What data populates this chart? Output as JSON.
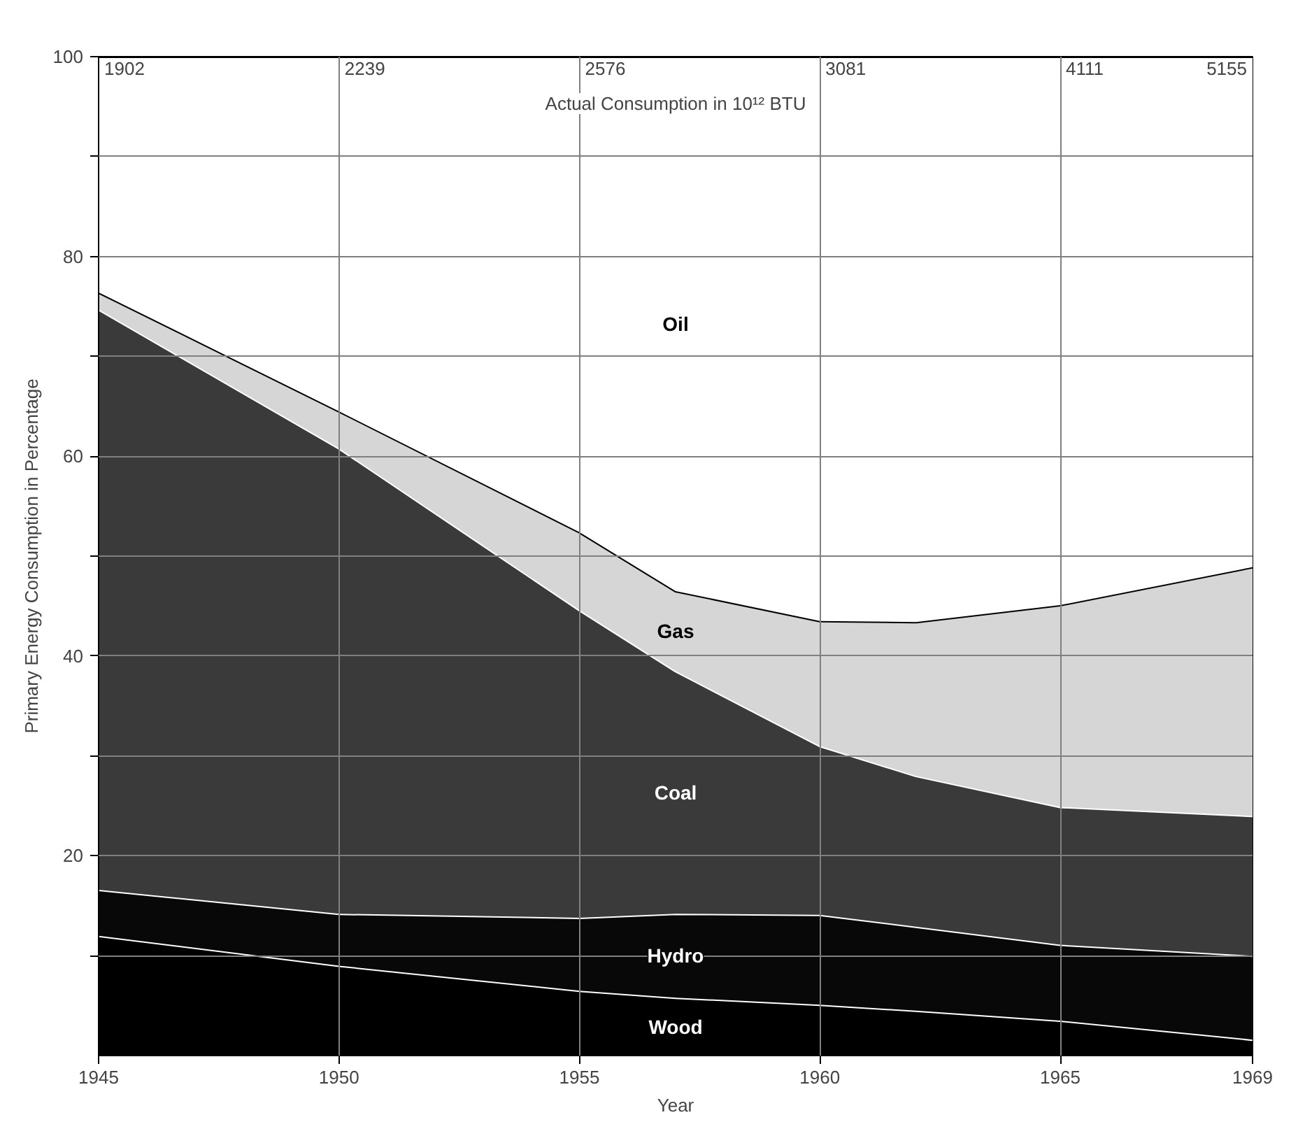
{
  "chart_data": {
    "type": "area",
    "stacked": true,
    "x": [
      1945,
      1950,
      1955,
      1957,
      1960,
      1962,
      1965,
      1969
    ],
    "xlim": [
      1945,
      1969
    ],
    "xticks": [
      1945,
      1950,
      1955,
      1960,
      1965,
      1969
    ],
    "annotations": [
      {
        "text": "1902",
        "x": 1945,
        "y": 100
      },
      {
        "text": "2239",
        "x": 1950,
        "y": 100
      },
      {
        "text": "2576",
        "x": 1955,
        "y": 100
      },
      {
        "text": "3081",
        "x": 1960,
        "y": 100
      },
      {
        "text": "4111",
        "x": 1965,
        "y": 100
      },
      {
        "text": "5155",
        "x": 1969,
        "y": 100
      },
      "Actual Consumption in 10¹² BTU"
    ],
    "xlabel": "Year",
    "ylabel": "Primary Energy Consumption in Percentage",
    "ylim": [
      0,
      100
    ],
    "yticks": [
      {
        "value": 10,
        "label": null
      },
      20,
      {
        "value": 30,
        "label": null
      },
      40,
      {
        "value": 50,
        "label": null
      },
      60,
      {
        "value": 70,
        "label": null
      },
      80,
      {
        "value": 90,
        "label": null
      },
      100
    ],
    "grid": true,
    "series": [
      {
        "name": "Wood",
        "color": "#000000",
        "values": [
          12,
          9,
          6.5,
          5.8,
          5.1,
          4.5,
          3.5,
          1.6
        ]
      },
      {
        "name": "Hydro",
        "color": "#080808",
        "values": [
          4.6,
          5.2,
          7.3,
          8.4,
          9.0,
          8.4,
          7.6,
          8.4
        ]
      },
      {
        "name": "Coal",
        "color": "#3a3a3a",
        "values": [
          58.1,
          46.6,
          30.8,
          24.3,
          16.9,
          15.1,
          13.8,
          14
        ]
      },
      {
        "name": "Gas",
        "color": "#d6d6d6",
        "values": [
          1.7,
          3.7,
          7.8,
          8.0,
          12.5,
          15.4,
          20.2,
          24.9
        ]
      },
      {
        "name": "Oil",
        "color": "#ffffff",
        "values": [
          23.6,
          35.5,
          47.6,
          53.5,
          56.5,
          56.6,
          54.9,
          51.1
        ]
      }
    ]
  }
}
